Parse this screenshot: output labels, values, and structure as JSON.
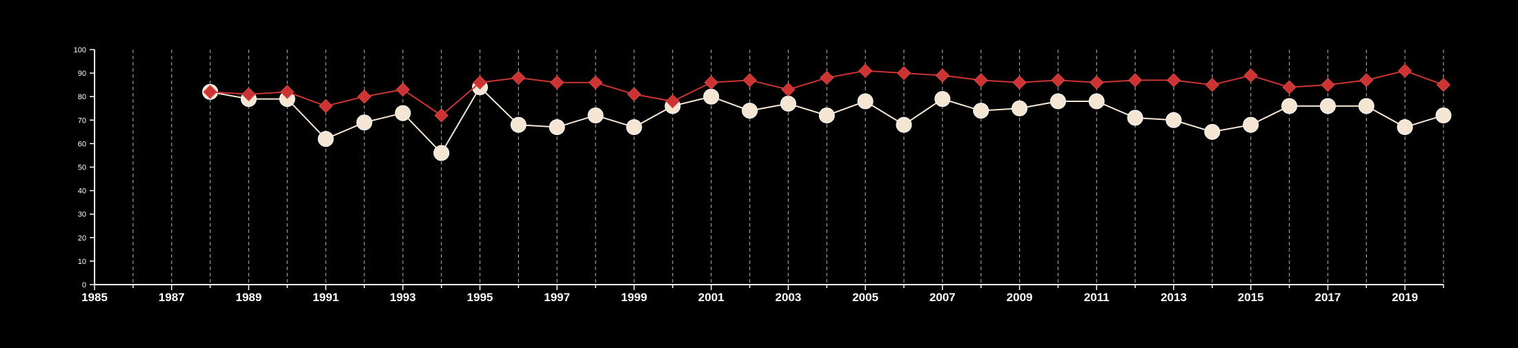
{
  "chart_data": {
    "type": "line",
    "title": "",
    "xlabel": "",
    "ylabel": "",
    "xlim": [
      1985,
      2020
    ],
    "ylim": [
      0,
      100
    ],
    "x_tick_labels": [
      "1985",
      "1987",
      "1989",
      "1991",
      "1993",
      "1995",
      "1997",
      "1999",
      "2001",
      "2003",
      "2005",
      "2007",
      "2009",
      "2011",
      "2013",
      "2015",
      "2017",
      "2019"
    ],
    "y_tick_labels": [
      "0",
      "10",
      "20",
      "30",
      "40",
      "50",
      "60",
      "70",
      "80",
      "90",
      "100"
    ],
    "vertical_grid": "dashed",
    "legend": "none",
    "x": [
      1988,
      1989,
      1990,
      1991,
      1992,
      1993,
      1994,
      1995,
      1996,
      1997,
      1998,
      1999,
      2000,
      2001,
      2002,
      2003,
      2004,
      2005,
      2006,
      2007,
      2008,
      2009,
      2010,
      2011,
      2012,
      2013,
      2014,
      2015,
      2016,
      2017,
      2018,
      2019,
      2020
    ],
    "series": [
      {
        "marker": "diamond",
        "color": "#cc3333",
        "values": [
          82,
          81,
          82,
          76,
          80,
          83,
          72,
          86,
          88,
          86,
          86,
          81,
          78,
          86,
          87,
          83,
          88,
          91,
          90,
          89,
          87,
          86,
          87,
          86,
          87,
          87,
          85,
          89,
          84,
          85,
          87,
          91,
          85
        ]
      },
      {
        "marker": "circle",
        "color": "#f5e6d3",
        "values": [
          82,
          79,
          79,
          62,
          69,
          73,
          56,
          84,
          68,
          67,
          72,
          67,
          76,
          80,
          74,
          77,
          72,
          78,
          68,
          79,
          74,
          75,
          78,
          78,
          71,
          70,
          65,
          68,
          76,
          76,
          76,
          67,
          72
        ]
      }
    ]
  }
}
